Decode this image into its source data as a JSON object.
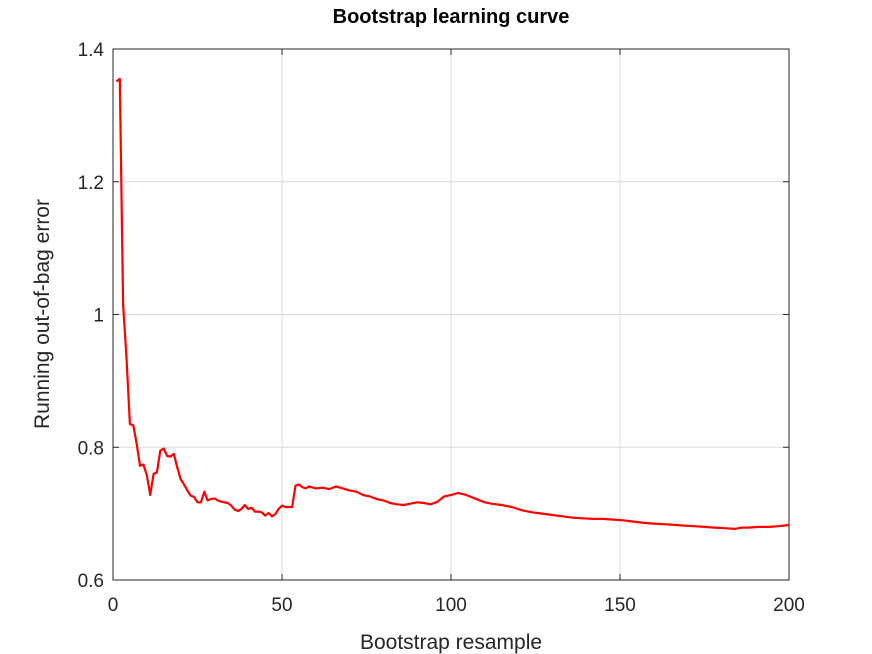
{
  "chart_data": {
    "type": "line",
    "title": "Bootstrap learning curve",
    "xlabel": "Bootstrap resample",
    "ylabel": "Running out-of-bag error",
    "xlim": [
      0,
      200
    ],
    "ylim": [
      0.6,
      1.4
    ],
    "xticks": [
      0,
      50,
      100,
      150,
      200
    ],
    "yticks": [
      0.6,
      0.8,
      1,
      1.2,
      1.4
    ],
    "xtick_labels": [
      "0",
      "50",
      "100",
      "150",
      "200"
    ],
    "ytick_labels": [
      "0.6",
      "0.8",
      "1",
      "1.2",
      "1.4"
    ],
    "grid": true,
    "series": [
      {
        "color": "#ff0000",
        "x": [
          1,
          2,
          3,
          4,
          5,
          6,
          7,
          8,
          9,
          10,
          11,
          12,
          13,
          14,
          15,
          16,
          17,
          18,
          19,
          20,
          21,
          22,
          23,
          24,
          25,
          26,
          27,
          28,
          29,
          30,
          31,
          32,
          33,
          34,
          35,
          36,
          37,
          38,
          39,
          40,
          41,
          42,
          43,
          44,
          45,
          46,
          47,
          48,
          49,
          50,
          51,
          52,
          53,
          54,
          55,
          56,
          57,
          58,
          60,
          62,
          64,
          66,
          68,
          70,
          72,
          74,
          76,
          78,
          80,
          82,
          84,
          86,
          88,
          90,
          92,
          94,
          96,
          98,
          100,
          102,
          104,
          106,
          108,
          110,
          112,
          115,
          118,
          121,
          124,
          127,
          130,
          133,
          136,
          139,
          142,
          145,
          148,
          151,
          154,
          157,
          160,
          163,
          166,
          169,
          172,
          175,
          178,
          181,
          184,
          186,
          188,
          191,
          194,
          197,
          200
        ],
        "y": [
          1.351,
          1.355,
          1.015,
          0.935,
          0.835,
          0.833,
          0.805,
          0.772,
          0.774,
          0.758,
          0.728,
          0.76,
          0.762,
          0.795,
          0.798,
          0.787,
          0.786,
          0.79,
          0.77,
          0.752,
          0.744,
          0.735,
          0.727,
          0.725,
          0.717,
          0.717,
          0.733,
          0.72,
          0.722,
          0.723,
          0.72,
          0.718,
          0.717,
          0.716,
          0.712,
          0.706,
          0.704,
          0.707,
          0.713,
          0.707,
          0.709,
          0.703,
          0.703,
          0.702,
          0.697,
          0.701,
          0.696,
          0.699,
          0.707,
          0.712,
          0.71,
          0.71,
          0.71,
          0.742,
          0.744,
          0.74,
          0.738,
          0.741,
          0.738,
          0.739,
          0.737,
          0.741,
          0.738,
          0.735,
          0.733,
          0.728,
          0.726,
          0.722,
          0.72,
          0.716,
          0.714,
          0.713,
          0.715,
          0.717,
          0.716,
          0.714,
          0.718,
          0.726,
          0.728,
          0.731,
          0.729,
          0.725,
          0.721,
          0.717,
          0.715,
          0.713,
          0.71,
          0.705,
          0.702,
          0.7,
          0.698,
          0.696,
          0.694,
          0.693,
          0.692,
          0.692,
          0.691,
          0.69,
          0.688,
          0.686,
          0.685,
          0.684,
          0.683,
          0.682,
          0.681,
          0.68,
          0.679,
          0.678,
          0.677,
          0.679,
          0.679,
          0.68,
          0.68,
          0.681,
          0.683
        ]
      }
    ]
  }
}
